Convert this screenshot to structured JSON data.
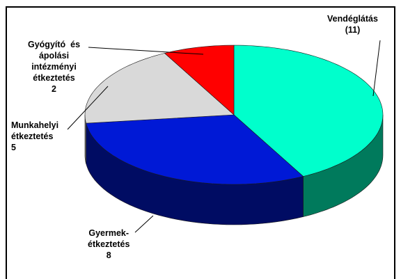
{
  "chart_data": {
    "type": "pie",
    "style": "3d",
    "title": "",
    "slices": [
      {
        "name": "Vendéglátás",
        "value": 11,
        "value_text": "(11)",
        "color": "#00ffcc",
        "side_color": "#007a5c"
      },
      {
        "name": "Gyermekétkeztetés",
        "lines": [
          "Gyermek-",
          "étkeztetés"
        ],
        "value": 8,
        "value_text": "8",
        "color": "#0019d6",
        "side_color": "#000c63"
      },
      {
        "name": "Munkahelyi étkeztetés",
        "lines": [
          "Munkahelyi",
          "étkeztetés"
        ],
        "value": 5,
        "value_text": "5",
        "color": "#d9d9d9",
        "side_color": "#7f7f7f"
      },
      {
        "name": "Gyógyító és ápolási intézményi étkeztetés",
        "lines": [
          "Gyógyító  és",
          "ápolási",
          "intézményi",
          "étkeztetés"
        ],
        "value": 2,
        "value_text": "2",
        "color": "#ff0000",
        "side_color": "#800000"
      }
    ]
  }
}
